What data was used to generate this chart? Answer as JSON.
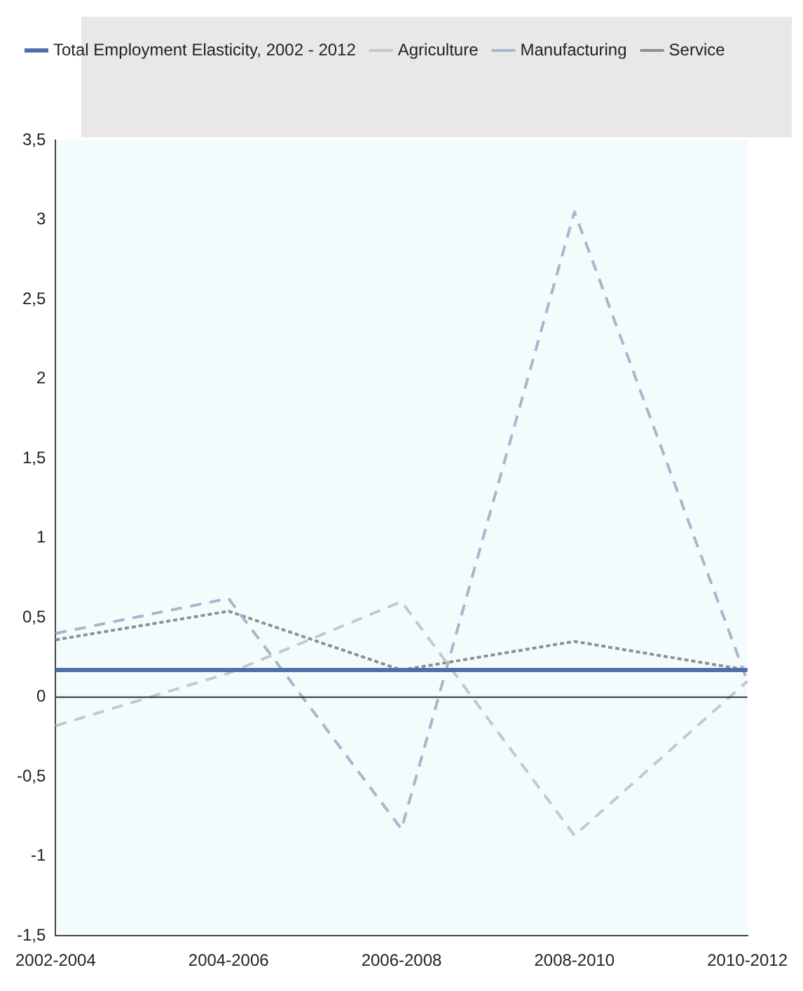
{
  "chart_data": {
    "type": "line",
    "categories": [
      "2002-2004",
      "2004-2006",
      "2006-2008",
      "2008-2010",
      "2010-2012"
    ],
    "series": [
      {
        "name": "Total Employment Elasticity, 2002 - 2012",
        "color": "#4f6fa8",
        "line_style": "solid",
        "values": [
          0.17,
          0.17,
          0.17,
          0.17,
          0.17
        ]
      },
      {
        "name": "Agriculture",
        "color": "#c4c8cc",
        "line_style": "dashed",
        "values": [
          -0.18,
          0.15,
          0.6,
          -0.87,
          0.1
        ]
      },
      {
        "name": "Manufacturing",
        "color": "#a9b5cf",
        "line_style": "dashed",
        "values": [
          0.4,
          0.62,
          -0.83,
          3.05,
          0.1
        ]
      },
      {
        "name": "Service",
        "color": "#8c8f94",
        "line_style": "dotted",
        "values": [
          0.36,
          0.54,
          0.17,
          0.35,
          0.17
        ]
      }
    ],
    "ylim": [
      -1.5,
      3.5
    ],
    "yticks": [
      {
        "value": -1.5,
        "label": "-1,5"
      },
      {
        "value": -1,
        "label": "-1"
      },
      {
        "value": -0.5,
        "label": "-0,5"
      },
      {
        "value": 0,
        "label": "0"
      },
      {
        "value": 0.5,
        "label": "0,5"
      },
      {
        "value": 1,
        "label": "1"
      },
      {
        "value": 1.5,
        "label": "1,5"
      },
      {
        "value": 2,
        "label": "2"
      },
      {
        "value": 2.5,
        "label": "2,5"
      },
      {
        "value": 3,
        "label": "3"
      },
      {
        "value": 3.5,
        "label": "3,5"
      }
    ],
    "ref_lines": [
      {
        "axis": "y",
        "value": 0,
        "color": "#333333"
      }
    ],
    "grid": false,
    "legend": "top",
    "marker": "none"
  }
}
